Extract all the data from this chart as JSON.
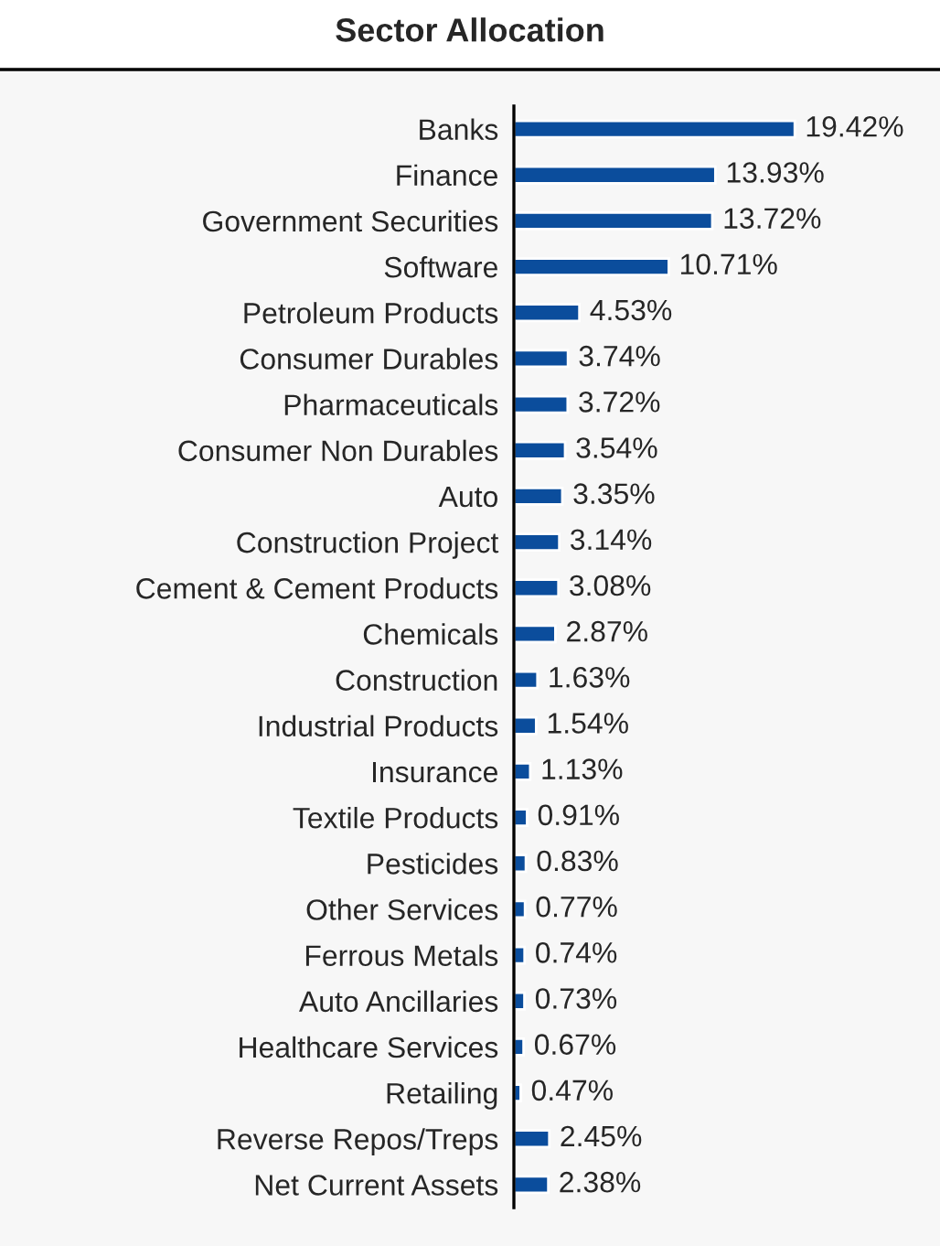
{
  "chart_data": {
    "type": "bar",
    "orientation": "horizontal",
    "title": "Sector Allocation",
    "categories": [
      "Banks",
      "Finance",
      "Government Securities",
      "Software",
      "Petroleum Products",
      "Consumer Durables",
      "Pharmaceuticals",
      "Consumer Non Durables",
      "Auto",
      "Construction Project",
      "Cement & Cement Products",
      "Chemicals",
      "Construction",
      "Industrial Products",
      "Insurance",
      "Textile Products",
      "Pesticides",
      "Other Services",
      "Ferrous Metals",
      "Auto Ancillaries",
      "Healthcare Services",
      "Retailing",
      "Reverse Repos/Treps",
      "Net Current Assets"
    ],
    "values": [
      19.42,
      13.93,
      13.72,
      10.71,
      4.53,
      3.74,
      3.72,
      3.54,
      3.35,
      3.14,
      3.08,
      2.87,
      1.63,
      1.54,
      1.13,
      0.91,
      0.83,
      0.77,
      0.74,
      0.73,
      0.67,
      0.47,
      2.45,
      2.38
    ],
    "value_labels": [
      "19.42%",
      "13.93%",
      "13.72%",
      "10.71%",
      "4.53%",
      "3.74%",
      "3.72%",
      "3.54%",
      "3.35%",
      "3.14%",
      "3.08%",
      "2.87%",
      "1.63%",
      "1.54%",
      "1.13%",
      "0.91%",
      "0.83%",
      "0.77%",
      "0.74%",
      "0.73%",
      "0.67%",
      "0.47%",
      "2.45%",
      "2.38%"
    ],
    "color": "#0b4d9c",
    "grid": false,
    "legend": false
  }
}
